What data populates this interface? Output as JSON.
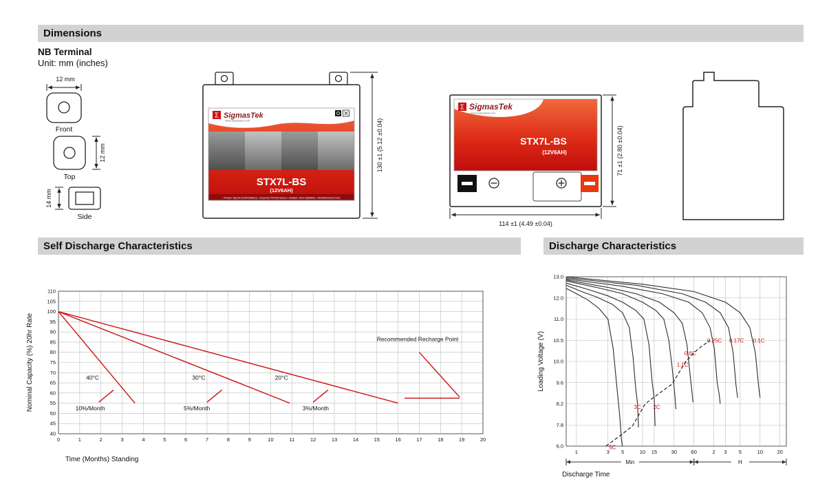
{
  "sections": {
    "dimensions_title": "Dimensions",
    "self_discharge_title": "Self Discharge Characteristics",
    "discharge_title": "Discharge Characteristics"
  },
  "terminal": {
    "title": "NB Terminal",
    "unit": "Unit: mm (inches)",
    "front": {
      "label": "Front",
      "dim": "12 mm"
    },
    "top": {
      "label": "Top",
      "dim": "12 mm"
    },
    "side": {
      "label": "Side",
      "dim": "14 mm"
    }
  },
  "battery": {
    "brand": "SigmasTek",
    "sigma": "Σ",
    "website": "www.sigmastek.com",
    "model": "STX7L-BS",
    "capacity": "(12V6AH)",
    "features": "• Power Sports AGM Battery  • Superior Performance  • Sealed, Non-Spillable  • Maintenance-Free",
    "height_dim": "130 ±1 (5.12 ±0.04)",
    "width_dim": "114 ±1 (4.49 ±0.04)",
    "depth_dim": "71 ±1 (2.80 ±0.04)",
    "polarity": {
      "negative": "⊖",
      "positive": "⊕"
    }
  },
  "chart_data": [
    {
      "type": "line",
      "title": "Self Discharge Characteristics",
      "xlabel": "Time (Months) Standing",
      "ylabel": "Nominal Capacity (%) 20hr Rate",
      "xlim": [
        0,
        20
      ],
      "ylim": [
        40,
        110
      ],
      "x_tick_step": 1,
      "y_tick_step": 5,
      "grid": true,
      "line_color": "#cc1111",
      "series": [
        {
          "name": "10%/Month",
          "points": [
            [
              0,
              100
            ],
            [
              3.6,
              55
            ]
          ]
        },
        {
          "name": "5%/Month",
          "points": [
            [
              0,
              100
            ],
            [
              10.9,
              55
            ]
          ]
        },
        {
          "name": "3%/Month",
          "points": [
            [
              0,
              100
            ],
            [
              16,
              55
            ]
          ]
        }
      ],
      "extra_segments": [
        {
          "name": "recharge-slash-40C",
          "points": [
            [
              1.9,
              55.5
            ],
            [
              2.6,
              61.5
            ]
          ]
        },
        {
          "name": "recharge-slash-30C",
          "points": [
            [
              7.0,
              55.5
            ],
            [
              7.7,
              61.5
            ]
          ]
        },
        {
          "name": "recharge-slash-20C",
          "points": [
            [
              12.0,
              55.5
            ],
            [
              12.7,
              61.5
            ]
          ]
        },
        {
          "name": "recharge-level",
          "points": [
            [
              16.3,
              57.5
            ],
            [
              18.9,
              57.5
            ]
          ]
        },
        {
          "name": "recharge-pointer",
          "points": [
            [
              17.0,
              80
            ],
            [
              18.9,
              58
            ]
          ]
        }
      ],
      "annotations": [
        {
          "text": "40°C",
          "x": 1.3,
          "y": 66.5
        },
        {
          "text": "30°C",
          "x": 6.3,
          "y": 66.5
        },
        {
          "text": "20°C",
          "x": 10.2,
          "y": 66.5
        },
        {
          "text": "10%/Month",
          "x": 0.8,
          "y": 51.5
        },
        {
          "text": "5%/Month",
          "x": 5.9,
          "y": 51.5
        },
        {
          "text": "3%/Month",
          "x": 11.5,
          "y": 51.5
        },
        {
          "text": "Recommended Recharge Point",
          "x": 15.0,
          "y": 85.5
        }
      ]
    },
    {
      "type": "line",
      "title": "Discharge Characteristics",
      "xlabel": "Discharge Time",
      "ylabel": "Loading Voltage (V)",
      "x_scale": "log-minutes",
      "x_domain": [
        0.7,
        1500
      ],
      "x_ticks": [
        {
          "t": 1,
          "label": "1"
        },
        {
          "t": 3,
          "label": "3"
        },
        {
          "t": 5,
          "label": "5"
        },
        {
          "t": 10,
          "label": "10"
        },
        {
          "t": 15,
          "label": "15"
        },
        {
          "t": 30,
          "label": "30"
        },
        {
          "t": 60,
          "label": "60"
        },
        {
          "t": 120,
          "label": "2"
        },
        {
          "t": 180,
          "label": "3"
        },
        {
          "t": 300,
          "label": "5"
        },
        {
          "t": 600,
          "label": "10"
        },
        {
          "t": 1200,
          "label": "20"
        }
      ],
      "x_unit_spans": [
        {
          "label": "Min",
          "from": 0.7,
          "to": 60
        },
        {
          "label": "H",
          "from": 60,
          "to": 1500
        }
      ],
      "y_ticks": [
        13.0,
        12.0,
        11.0,
        10.5,
        10.0,
        9.6,
        8.2,
        7.8,
        6.0
      ],
      "grid": true,
      "curve_color": "#2b2b2b",
      "label_color": "#cc1111",
      "series": [
        {
          "name": "5C",
          "label_at": [
            3.1,
            5.75
          ],
          "points": [
            [
              0.7,
              12.45
            ],
            [
              1,
              12.2
            ],
            [
              1.5,
              11.9
            ],
            [
              2.2,
              11.5
            ],
            [
              3,
              11.0
            ],
            [
              3.6,
              10.3
            ],
            [
              4.1,
              9.3
            ],
            [
              4.5,
              8.0
            ],
            [
              4.8,
              6.6
            ],
            [
              4.95,
              6.0
            ]
          ]
        },
        {
          "name": "3C",
          "label_at": [
            7.4,
            8.1
          ],
          "points": [
            [
              0.7,
              12.6
            ],
            [
              1.2,
              12.3
            ],
            [
              2,
              12.05
            ],
            [
              3.5,
              11.7
            ],
            [
              5,
              11.3
            ],
            [
              6.3,
              10.8
            ],
            [
              7.2,
              10.1
            ],
            [
              7.9,
              9.2
            ],
            [
              8.4,
              8.2
            ],
            [
              8.7,
              7.6
            ]
          ]
        },
        {
          "name": "2C",
          "label_at": [
            14.5,
            8.1
          ],
          "points": [
            [
              0.7,
              12.7
            ],
            [
              1.5,
              12.4
            ],
            [
              3,
              12.1
            ],
            [
              5,
              11.8
            ],
            [
              8,
              11.4
            ],
            [
              10.5,
              11.0
            ],
            [
              12.5,
              10.4
            ],
            [
              14,
              9.6
            ],
            [
              15,
              8.6
            ],
            [
              15.5,
              7.7
            ]
          ]
        },
        {
          "name": "1.1C",
          "label_at": [
            33,
            9.9
          ],
          "points": [
            [
              0.7,
              12.8
            ],
            [
              2,
              12.5
            ],
            [
              5,
              12.2
            ],
            [
              10,
              11.8
            ],
            [
              16,
              11.4
            ],
            [
              21,
              11.0
            ],
            [
              25,
              10.5
            ],
            [
              28,
              9.9
            ],
            [
              30.5,
              9.0
            ],
            [
              32,
              8.1
            ]
          ]
        },
        {
          "name": "0.6C",
          "label_at": [
            43,
            10.15
          ],
          "points": [
            [
              0.7,
              12.85
            ],
            [
              3,
              12.5
            ],
            [
              8,
              12.2
            ],
            [
              18,
              11.8
            ],
            [
              30,
              11.3
            ],
            [
              40,
              10.9
            ],
            [
              47,
              10.4
            ],
            [
              52,
              9.8
            ],
            [
              56,
              9.0
            ],
            [
              58,
              8.3
            ]
          ]
        },
        {
          "name": "0.25C",
          "label_at": [
            95,
            10.45
          ],
          "points": [
            [
              0.7,
              12.9
            ],
            [
              5,
              12.55
            ],
            [
              20,
              12.2
            ],
            [
              50,
              11.8
            ],
            [
              80,
              11.3
            ],
            [
              105,
              10.8
            ],
            [
              122,
              10.3
            ],
            [
              135,
              9.6
            ],
            [
              145,
              8.8
            ],
            [
              150,
              8.2
            ]
          ]
        },
        {
          "name": "0.17C",
          "label_at": [
            205,
            10.45
          ],
          "points": [
            [
              0.7,
              12.95
            ],
            [
              8,
              12.6
            ],
            [
              40,
              12.2
            ],
            [
              90,
              11.8
            ],
            [
              150,
              11.3
            ],
            [
              200,
              10.8
            ],
            [
              235,
              10.2
            ],
            [
              260,
              9.4
            ],
            [
              275,
              8.6
            ]
          ]
        },
        {
          "name": "0.1C",
          "label_at": [
            470,
            10.45
          ],
          "points": [
            [
              0.7,
              13.0
            ],
            [
              10,
              12.65
            ],
            [
              60,
              12.3
            ],
            [
              180,
              11.8
            ],
            [
              300,
              11.3
            ],
            [
              420,
              10.8
            ],
            [
              510,
              10.2
            ],
            [
              570,
              9.4
            ],
            [
              600,
              8.6
            ]
          ]
        }
      ],
      "dashed_line": {
        "name": "recommended-end-of-discharge",
        "points": [
          [
            2.8,
            6.0
          ],
          [
            4.6,
            6.9
          ],
          [
            7,
            7.7
          ],
          [
            11,
            8.2
          ],
          [
            18,
            8.9
          ],
          [
            28,
            9.5
          ],
          [
            45,
            10.0
          ],
          [
            70,
            10.3
          ],
          [
            105,
            10.5
          ]
        ]
      }
    }
  ]
}
